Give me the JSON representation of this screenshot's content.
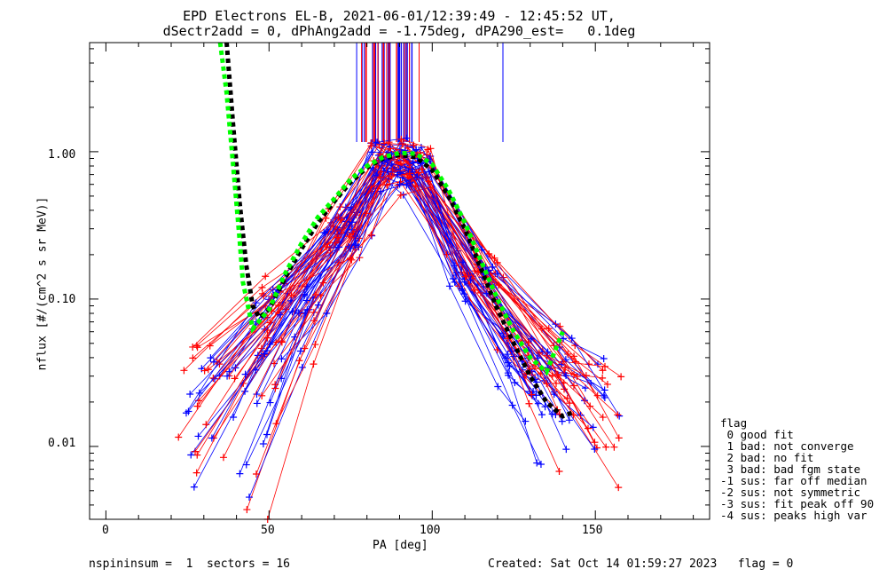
{
  "chart_data": {
    "type": "line",
    "title": "EPD Electrons EL-B, 2021-06-01/12:39:49 - 12:45:52 UT,",
    "subtitle": "dSectr2add = 0, dPhAng2add = -1.75deg, dPA290_est=   0.1deg",
    "xlabel": "PA [deg]",
    "ylabel": "nflux [#/(cm^2 s sr MeV)]",
    "xlim": [
      -5,
      185
    ],
    "ylim": [
      0.0032,
      5.5
    ],
    "yscale": "log",
    "x_ticks": [
      "0",
      "50",
      "100",
      "150"
    ],
    "y_ticks": [
      "0.01",
      "0.10",
      "1.00"
    ],
    "colors": {
      "red": "#ff0000",
      "blue": "#0000ff",
      "fit_black": "#000000",
      "fit_green": "#00ff00"
    },
    "series": [
      {
        "name": "",
        "x": [
          35,
          37,
          39,
          41,
          42,
          45,
          50,
          55,
          60,
          65,
          70,
          75,
          80,
          85,
          90,
          95,
          100,
          105,
          110,
          115,
          120,
          125,
          130,
          135,
          140
        ],
        "values": [
          5.5,
          2.5,
          0.8,
          0.25,
          0.13,
          0.063,
          0.085,
          0.15,
          0.24,
          0.36,
          0.48,
          0.65,
          0.8,
          0.92,
          0.98,
          0.97,
          0.82,
          0.55,
          0.33,
          0.18,
          0.1,
          0.06,
          0.04,
          0.032,
          0.06
        ]
      },
      {
        "name": "",
        "x": [
          37,
          39,
          41,
          43,
          45,
          47,
          50,
          55,
          60,
          65,
          70,
          75,
          80,
          85,
          90,
          95,
          100,
          105,
          110,
          115,
          120,
          125,
          130,
          135,
          140,
          143
        ],
        "values": [
          5.5,
          1.5,
          0.45,
          0.17,
          0.09,
          0.075,
          0.085,
          0.14,
          0.22,
          0.33,
          0.46,
          0.62,
          0.78,
          0.9,
          0.95,
          0.92,
          0.75,
          0.5,
          0.3,
          0.16,
          0.085,
          0.05,
          0.03,
          0.02,
          0.016,
          0.017
        ]
      }
    ],
    "legend": {
      "title": "flag",
      "items": [
        " 0 good fit",
        " 1 bad: not converge",
        " 2 bad: no fit",
        " 3 bad: bad fgm state",
        "-1 sus: far off median",
        "-2 sus: not symmetric",
        "-3 sus: fit peak off 90",
        "-4 sus: peaks high var"
      ]
    },
    "footer_left": "nspininsum =  1  sectors = 16",
    "footer_right": "Created: Sat Oct 14 01:59:27 2023   flag = 0"
  }
}
